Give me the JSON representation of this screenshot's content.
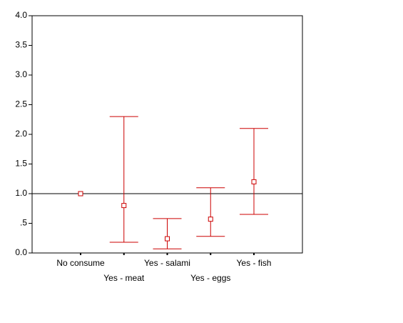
{
  "chart_data": {
    "type": "errorbar",
    "categories": [
      "No consume",
      "Yes - meat",
      "Yes - salami",
      "Yes - eggs",
      "Yes - fish"
    ],
    "values": [
      1.0,
      0.8,
      0.24,
      0.57,
      1.2
    ],
    "lower": [
      null,
      0.18,
      0.07,
      0.28,
      0.65
    ],
    "upper": [
      null,
      2.3,
      0.58,
      1.1,
      2.1
    ],
    "color": "#cc0000",
    "reference_line": 1.0,
    "ylim": [
      0,
      4
    ],
    "yticks": [
      {
        "value": 0,
        "label": "0.0"
      },
      {
        "value": 0.5,
        "label": ".5"
      },
      {
        "value": 1,
        "label": "1.0"
      },
      {
        "value": 1.5,
        "label": "1.5"
      },
      {
        "value": 2,
        "label": "2.0"
      },
      {
        "value": 2.5,
        "label": "2.5"
      },
      {
        "value": 3,
        "label": "3.0"
      },
      {
        "value": 3.5,
        "label": "3.5"
      },
      {
        "value": 4,
        "label": "4.0"
      }
    ]
  }
}
